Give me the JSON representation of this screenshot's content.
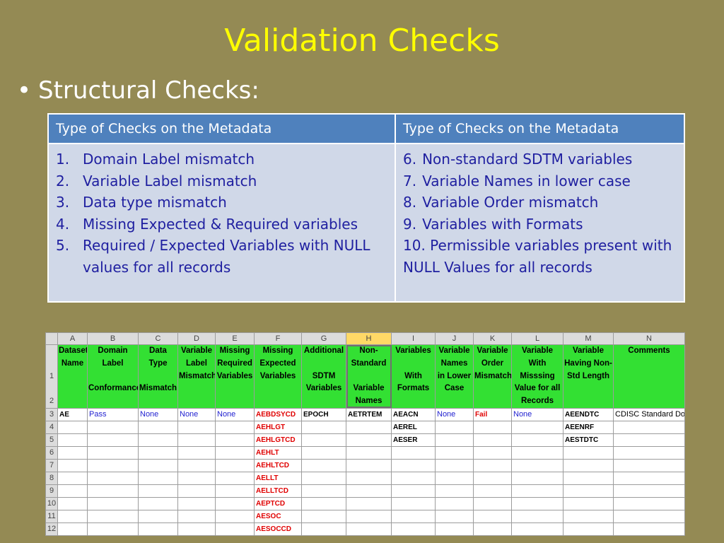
{
  "slide": {
    "title": "Validation Checks",
    "bullet_symbol": "•",
    "bullet": "Structural Checks:"
  },
  "meta_table": {
    "headers": [
      "Type of Checks on the Metadata",
      "Type of Checks on the Metadata"
    ],
    "left": [
      {
        "n": "1.",
        "text": "Domain Label mismatch"
      },
      {
        "n": "2.",
        "text": "Variable Label mismatch"
      },
      {
        "n": "3.",
        "text": "Data type mismatch"
      },
      {
        "n": "4.",
        "text": "Missing Expected & Required variables"
      },
      {
        "n": "5.",
        "text": "Required / Expected Variables with NULL values for all records"
      }
    ],
    "right": [
      {
        "n": "6.",
        "text": "Non-standard SDTM variables"
      },
      {
        "n": "7.",
        "text": "Variable Names in lower case"
      },
      {
        "n": "8.",
        "text": "Variable Order mismatch"
      },
      {
        "n": "9.",
        "text": "Variables with Formats"
      },
      {
        "n": "10.",
        "text": "Permissible variables present with NULL Values for all records"
      }
    ]
  },
  "sheet": {
    "selected_column": "H",
    "columns": [
      "A",
      "B",
      "C",
      "D",
      "E",
      "F",
      "G",
      "H",
      "I",
      "J",
      "K",
      "L",
      "M",
      "N"
    ],
    "header_row_numbers": [
      "1",
      "2"
    ],
    "headers": [
      {
        "line1": "Dataset Name",
        "line2": ""
      },
      {
        "line1": "Domain Label",
        "line2": "Conformance"
      },
      {
        "line1": "Data Type",
        "line2": "Mismatch"
      },
      {
        "line1": "Variable Label Mismatch",
        "line2": ""
      },
      {
        "line1": "Missing Required Variables",
        "line2": ""
      },
      {
        "line1": "Missing Expected Variables",
        "line2": ""
      },
      {
        "line1": "Additional",
        "line2": "SDTM Variables"
      },
      {
        "line1": "Non-Standard",
        "line2": "Variable Names"
      },
      {
        "line1": "Variables",
        "line2": "With Formats"
      },
      {
        "line1": "Variable Names in Lower Case",
        "line2": ""
      },
      {
        "line1": "Variable Order Mismatch",
        "line2": ""
      },
      {
        "line1": "Variable With Misssing Value for all Records",
        "line2": ""
      },
      {
        "line1": "Variable Having Non-Std Length",
        "line2": ""
      },
      {
        "line1": "Comments",
        "line2": ""
      }
    ],
    "row_numbers": [
      "3",
      "4",
      "5",
      "6",
      "7",
      "8",
      "9",
      "10",
      "11",
      "12"
    ],
    "rows": [
      [
        "AE",
        "Pass",
        "None",
        "None",
        "None",
        "AEBDSYCD",
        "EPOCH",
        "AETRTEM",
        "AEACN",
        "None",
        "Fail",
        "None",
        "AEENDTC",
        "CDISC Standard Domain"
      ],
      [
        "",
        "",
        "",
        "",
        "",
        "AEHLGT",
        "",
        "",
        "AEREL",
        "",
        "",
        "",
        "AEENRF",
        ""
      ],
      [
        "",
        "",
        "",
        "",
        "",
        "AEHLGTCD",
        "",
        "",
        "AESER",
        "",
        "",
        "",
        "AESTDTC",
        ""
      ],
      [
        "",
        "",
        "",
        "",
        "",
        "AEHLT",
        "",
        "",
        "",
        "",
        "",
        "",
        "",
        ""
      ],
      [
        "",
        "",
        "",
        "",
        "",
        "AEHLTCD",
        "",
        "",
        "",
        "",
        "",
        "",
        "",
        ""
      ],
      [
        "",
        "",
        "",
        "",
        "",
        "AELLT",
        "",
        "",
        "",
        "",
        "",
        "",
        "",
        ""
      ],
      [
        "",
        "",
        "",
        "",
        "",
        "AELLTCD",
        "",
        "",
        "",
        "",
        "",
        "",
        "",
        ""
      ],
      [
        "",
        "",
        "",
        "",
        "",
        "AEPTCD",
        "",
        "",
        "",
        "",
        "",
        "",
        "",
        ""
      ],
      [
        "",
        "",
        "",
        "",
        "",
        "AESOC",
        "",
        "",
        "",
        "",
        "",
        "",
        "",
        ""
      ],
      [
        "",
        "",
        "",
        "",
        "",
        "AESOCCD",
        "",
        "",
        "",
        "",
        "",
        "",
        "",
        ""
      ]
    ],
    "colors": {
      "blue": "#1f1fd0",
      "red": "#e00000",
      "header_green": "#33e033"
    }
  }
}
